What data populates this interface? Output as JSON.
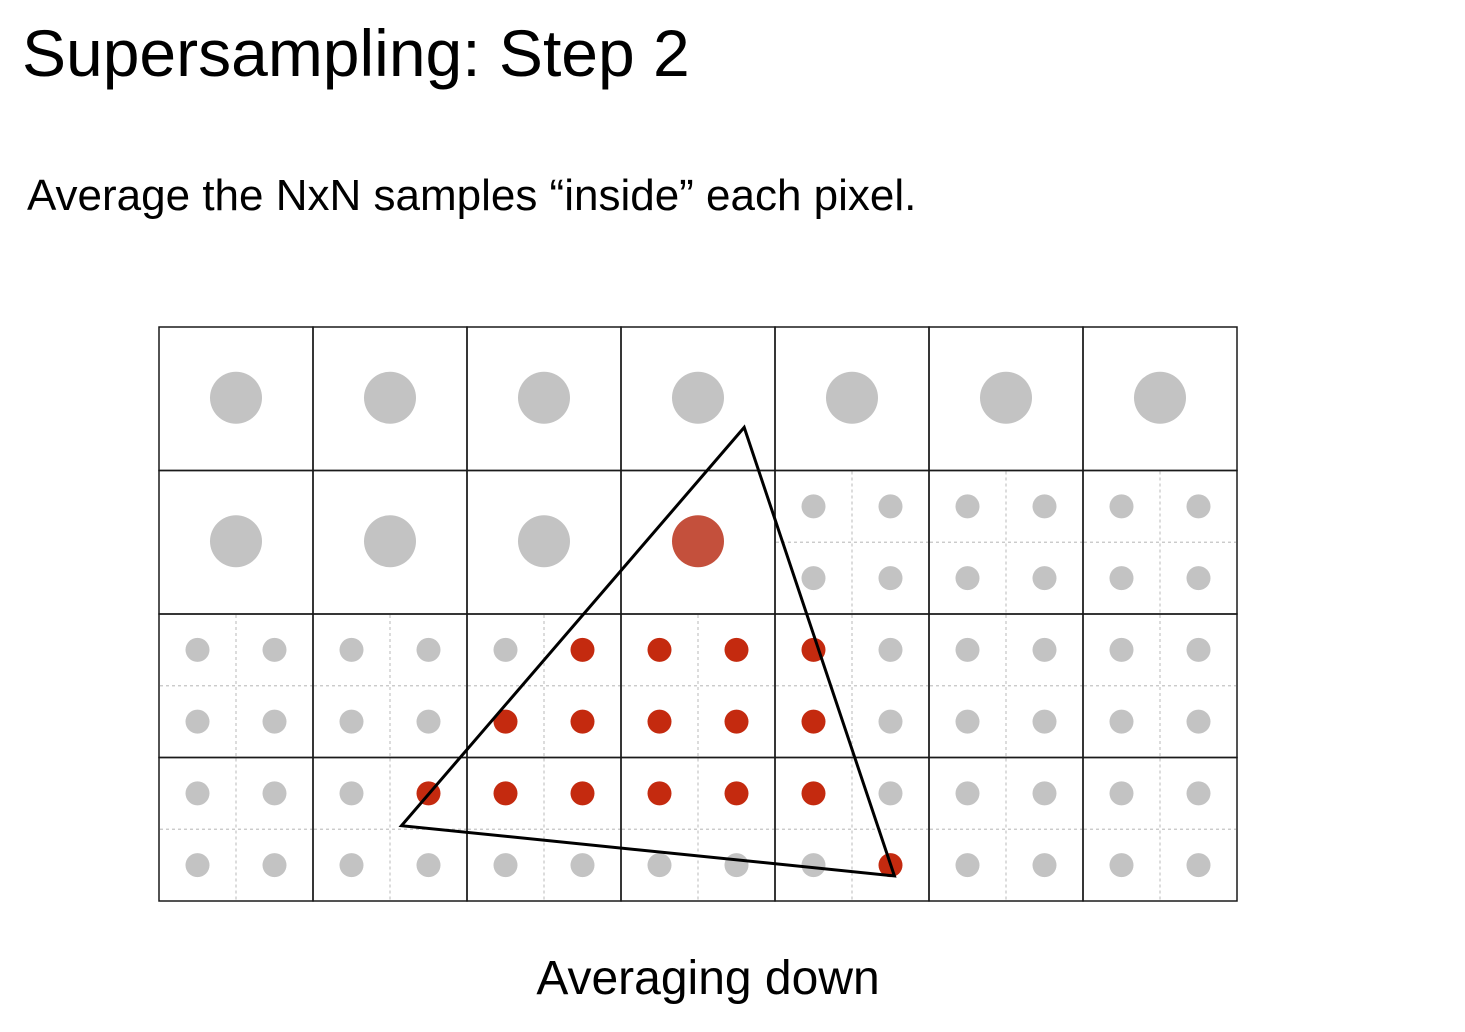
{
  "slide": {
    "title": "Supersampling: Step 2",
    "subtitle": "Average the NxN samples “inside” each pixel.",
    "caption": "Averaging down"
  },
  "grid": {
    "columns": 7,
    "rows": 4,
    "samples_per_pixel_side": 2,
    "averaged_pixels": [
      {
        "row": 0,
        "col": 0,
        "coverage": 0.0
      },
      {
        "row": 0,
        "col": 1,
        "coverage": 0.0
      },
      {
        "row": 0,
        "col": 2,
        "coverage": 0.0
      },
      {
        "row": 0,
        "col": 3,
        "coverage": 0.0
      },
      {
        "row": 0,
        "col": 4,
        "coverage": 0.0
      },
      {
        "row": 0,
        "col": 5,
        "coverage": 0.0
      },
      {
        "row": 0,
        "col": 6,
        "coverage": 0.0
      },
      {
        "row": 1,
        "col": 0,
        "coverage": 0.0
      },
      {
        "row": 1,
        "col": 1,
        "coverage": 0.0
      },
      {
        "row": 1,
        "col": 2,
        "coverage": 0.0
      },
      {
        "row": 1,
        "col": 3,
        "coverage": 0.75
      }
    ],
    "covered_samples": [
      [
        4,
        5
      ],
      [
        4,
        6
      ],
      [
        4,
        7
      ],
      [
        4,
        8
      ],
      [
        5,
        4
      ],
      [
        5,
        5
      ],
      [
        5,
        6
      ],
      [
        5,
        7
      ],
      [
        5,
        8
      ],
      [
        6,
        3
      ],
      [
        6,
        4
      ],
      [
        6,
        5
      ],
      [
        6,
        6
      ],
      [
        6,
        7
      ],
      [
        6,
        8
      ],
      [
        7,
        9
      ]
    ]
  },
  "triangle": {
    "vertices_subsample_units": [
      [
        7.6,
        1.4
      ],
      [
        3.15,
        6.95
      ],
      [
        9.55,
        7.65
      ]
    ]
  },
  "colors": {
    "background": "#ffffff",
    "pixel_border": "#1a1a1a",
    "subpixel_divider": "#c4c4c4",
    "sample_outside": "#c3c3c3",
    "sample_inside": "#c42a0f",
    "averaged_partial": "#d85c45",
    "triangle_edge": "#000000"
  }
}
